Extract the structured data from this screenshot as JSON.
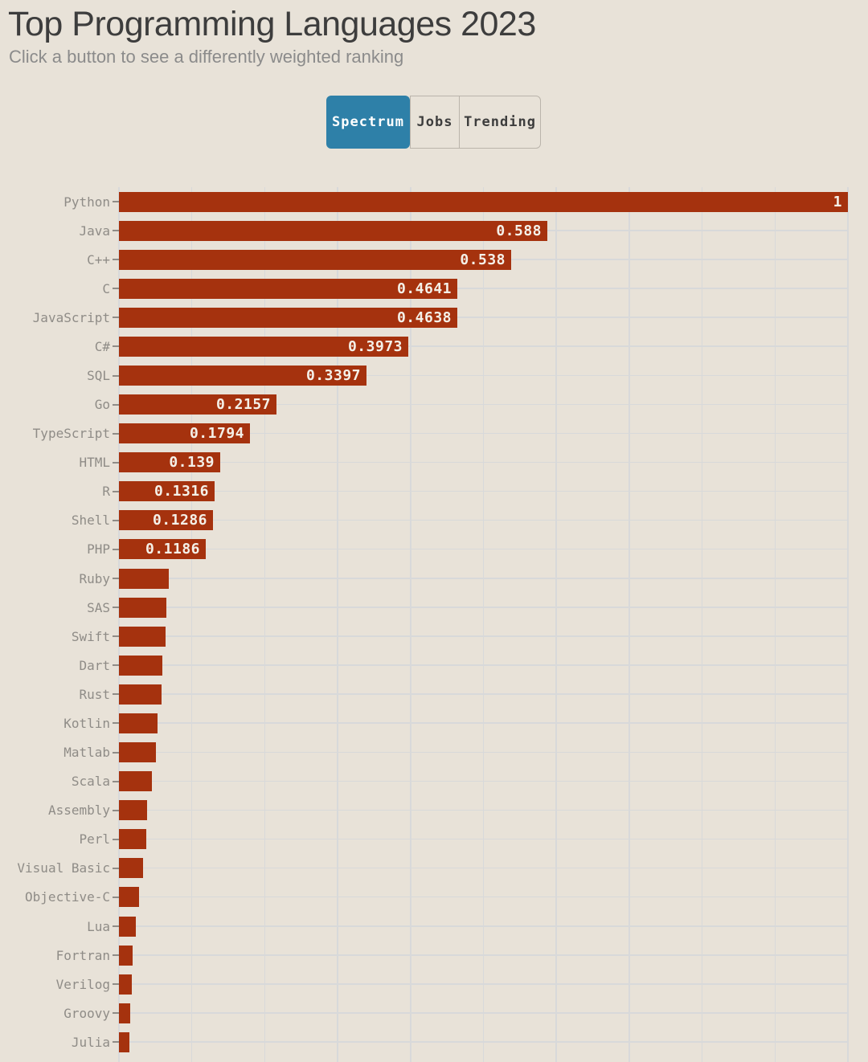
{
  "header": {
    "title": "Top Programming Languages 2023",
    "subtitle": "Click a button to see a differently weighted ranking"
  },
  "tabs": [
    {
      "label": "Spectrum",
      "active": true
    },
    {
      "label": "Jobs",
      "active": false
    },
    {
      "label": "Trending",
      "active": false
    }
  ],
  "colors": {
    "background": "#e8e2d8",
    "bar": "#a5320e",
    "active_tab_blue": "#2e80a8",
    "grid": "#d8d9da",
    "category_label": "#8f8c87",
    "value_text": "#f4f0e8",
    "title": "#3d3d3d",
    "subtitle": "#8b8b8b",
    "tab_border": "#bab4ab"
  },
  "chart_data": {
    "type": "bar",
    "orientation": "horizontal",
    "title": "Top Programming Languages 2023",
    "xlabel": "",
    "ylabel": "",
    "xlim": [
      0,
      1
    ],
    "grid": true,
    "x_gridlines": [
      0,
      0.1,
      0.2,
      0.3,
      0.4,
      0.5,
      0.6,
      0.7,
      0.8,
      0.9,
      1.0
    ],
    "value_label_position": "inside-end",
    "categories": [
      "Python",
      "Java",
      "C++",
      "C",
      "JavaScript",
      "C#",
      "SQL",
      "Go",
      "TypeScript",
      "HTML",
      "R",
      "Shell",
      "PHP",
      "Ruby",
      "SAS",
      "Swift",
      "Dart",
      "Rust",
      "Kotlin",
      "Matlab",
      "Scala",
      "Assembly",
      "Perl",
      "Visual Basic",
      "Objective-C",
      "Lua",
      "Fortran",
      "Verilog",
      "Groovy",
      "Julia"
    ],
    "values": [
      1,
      0.588,
      0.538,
      0.4641,
      0.4638,
      0.3973,
      0.3397,
      0.2157,
      0.1794,
      0.139,
      0.1316,
      0.1286,
      0.1186,
      0.068,
      0.0645,
      0.0635,
      0.06,
      0.058,
      0.0525,
      0.051,
      0.045,
      0.0385,
      0.0375,
      0.033,
      0.0272,
      0.023,
      0.019,
      0.0175,
      0.015,
      0.0145
    ],
    "value_labels": [
      "1",
      "0.588",
      "0.538",
      "0.4641",
      "0.4638",
      "0.3973",
      "0.3397",
      "0.2157",
      "0.1794",
      "0.139",
      "0.1316",
      "0.1286",
      "0.1186",
      "",
      "",
      "",
      "",
      "",
      "",
      "",
      "",
      "",
      "",
      "",
      "",
      "",
      "",
      "",
      "",
      ""
    ]
  }
}
